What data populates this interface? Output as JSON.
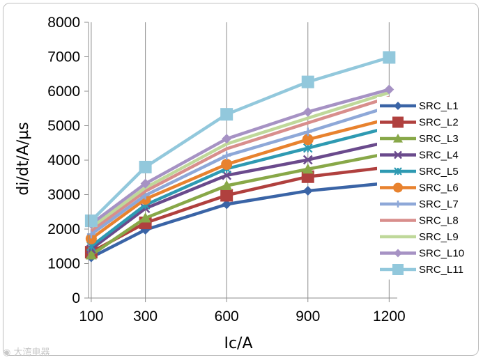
{
  "chart_data": {
    "type": "line",
    "title": "",
    "xlabel": "Ic/A",
    "ylabel": "di/dt/A/µs",
    "categories": [
      "100",
      "300",
      "600",
      "900",
      "1200"
    ],
    "x": [
      100,
      300,
      600,
      900,
      1200
    ],
    "ylim": [
      0,
      8000
    ],
    "yticks": [
      "0",
      "1000",
      "2000",
      "3000",
      "4000",
      "5000",
      "6000",
      "7000",
      "8000"
    ],
    "grid": "vertical",
    "legend_position": "right",
    "series": [
      {
        "name": "SRC_L1",
        "color": "#3A64A6",
        "marker": "diamond",
        "values": [
          1180,
          1980,
          2720,
          3110,
          3340
        ]
      },
      {
        "name": "SRC_L2",
        "color": "#B0403E",
        "marker": "square",
        "values": [
          1330,
          2180,
          2980,
          3520,
          3800
        ]
      },
      {
        "name": "SRC_L3",
        "color": "#88A848",
        "marker": "triangle",
        "values": [
          1250,
          2320,
          3260,
          3740,
          4200
        ]
      },
      {
        "name": "SRC_L4",
        "color": "#6A4A8C",
        "marker": "x",
        "values": [
          1420,
          2600,
          3560,
          4010,
          4540
        ]
      },
      {
        "name": "SRC_L5",
        "color": "#2E9AB2",
        "marker": "star",
        "values": [
          1500,
          2700,
          3750,
          4350,
          4950
        ]
      },
      {
        "name": "SRC_L6",
        "color": "#E8822E",
        "marker": "circle",
        "values": [
          1720,
          2870,
          3880,
          4600,
          5200
        ]
      },
      {
        "name": "SRC_L7",
        "color": "#8EA8D8",
        "marker": "plus",
        "values": [
          1850,
          2980,
          4130,
          4820,
          5550
        ]
      },
      {
        "name": "SRC_L8",
        "color": "#D88E8C",
        "marker": "none",
        "values": [
          1950,
          3100,
          4330,
          5080,
          5820
        ]
      },
      {
        "name": "SRC_L9",
        "color": "#BFD89A",
        "marker": "none",
        "values": [
          2050,
          3200,
          4470,
          5220,
          5960
        ]
      },
      {
        "name": "SRC_L10",
        "color": "#A692C4",
        "marker": "diamond",
        "values": [
          2150,
          3320,
          4620,
          5400,
          6050
        ]
      },
      {
        "name": "SRC_L11",
        "color": "#92C8DC",
        "marker": "square",
        "values": [
          2240,
          3800,
          5330,
          6270,
          6980
        ]
      }
    ]
  },
  "watermark": {
    "text": "大湾电器"
  }
}
